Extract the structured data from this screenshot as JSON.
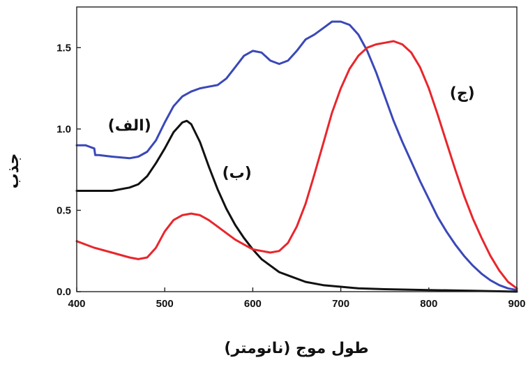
{
  "chart_data": {
    "type": "line",
    "xlabel": "طول موج (نانومتر)",
    "ylabel": "جذب",
    "xlim": [
      400,
      900
    ],
    "ylim": [
      0,
      1.75
    ],
    "xticks": [
      "400",
      "500",
      "600",
      "700",
      "800",
      "900"
    ],
    "yticks": [
      "0.0",
      "0.5",
      "1.0",
      "1.5"
    ],
    "grid": false,
    "series": [
      {
        "name": "(الف)",
        "color": "#3a48b8",
        "x": [
          400,
          410,
          420,
          421,
          425,
          440,
          460,
          470,
          480,
          490,
          500,
          510,
          520,
          530,
          540,
          550,
          560,
          570,
          580,
          590,
          600,
          610,
          620,
          630,
          640,
          650,
          660,
          670,
          680,
          690,
          700,
          710,
          720,
          730,
          740,
          750,
          760,
          770,
          780,
          790,
          800,
          810,
          820,
          830,
          840,
          850,
          860,
          870,
          880,
          890,
          900
        ],
        "values": [
          0.9,
          0.9,
          0.88,
          0.84,
          0.84,
          0.83,
          0.82,
          0.83,
          0.86,
          0.93,
          1.04,
          1.14,
          1.2,
          1.23,
          1.25,
          1.26,
          1.27,
          1.31,
          1.38,
          1.45,
          1.48,
          1.47,
          1.42,
          1.4,
          1.42,
          1.48,
          1.55,
          1.58,
          1.62,
          1.66,
          1.66,
          1.64,
          1.58,
          1.48,
          1.35,
          1.2,
          1.05,
          0.92,
          0.8,
          0.68,
          0.57,
          0.46,
          0.37,
          0.29,
          0.22,
          0.16,
          0.11,
          0.07,
          0.04,
          0.02,
          0.01
        ]
      },
      {
        "name": "(ب)",
        "color": "#111111",
        "x": [
          400,
          420,
          440,
          460,
          470,
          480,
          490,
          500,
          510,
          520,
          525,
          530,
          540,
          550,
          560,
          570,
          580,
          590,
          600,
          610,
          620,
          630,
          640,
          660,
          680,
          700,
          720,
          750,
          800,
          850,
          900
        ],
        "values": [
          0.62,
          0.62,
          0.62,
          0.64,
          0.66,
          0.71,
          0.79,
          0.88,
          0.98,
          1.04,
          1.05,
          1.03,
          0.92,
          0.77,
          0.63,
          0.51,
          0.41,
          0.33,
          0.26,
          0.2,
          0.16,
          0.12,
          0.1,
          0.06,
          0.04,
          0.03,
          0.02,
          0.015,
          0.01,
          0.005,
          0.0
        ]
      },
      {
        "name": "(ج)",
        "color": "#e8262c",
        "x": [
          400,
          420,
          440,
          460,
          470,
          480,
          490,
          500,
          510,
          520,
          530,
          540,
          550,
          560,
          570,
          580,
          590,
          600,
          610,
          620,
          630,
          640,
          650,
          660,
          670,
          680,
          690,
          700,
          710,
          720,
          730,
          740,
          750,
          760,
          770,
          780,
          790,
          800,
          810,
          820,
          830,
          840,
          850,
          860,
          870,
          880,
          890,
          900
        ],
        "values": [
          0.31,
          0.27,
          0.24,
          0.21,
          0.2,
          0.21,
          0.27,
          0.37,
          0.44,
          0.47,
          0.48,
          0.47,
          0.44,
          0.4,
          0.36,
          0.32,
          0.29,
          0.26,
          0.25,
          0.24,
          0.25,
          0.3,
          0.4,
          0.54,
          0.72,
          0.91,
          1.1,
          1.25,
          1.37,
          1.45,
          1.5,
          1.52,
          1.53,
          1.54,
          1.52,
          1.47,
          1.38,
          1.25,
          1.09,
          0.92,
          0.75,
          0.59,
          0.45,
          0.33,
          0.22,
          0.13,
          0.06,
          0.02
        ]
      }
    ],
    "annotations": [
      {
        "text": "(الف)",
        "series": "(الف)",
        "x": 460,
        "y": 0.99
      },
      {
        "text": "(ب)",
        "series": "(ب)",
        "x": 582,
        "y": 0.7
      },
      {
        "text": "(ج)",
        "series": "(ج)",
        "x": 838,
        "y": 1.19
      }
    ]
  }
}
